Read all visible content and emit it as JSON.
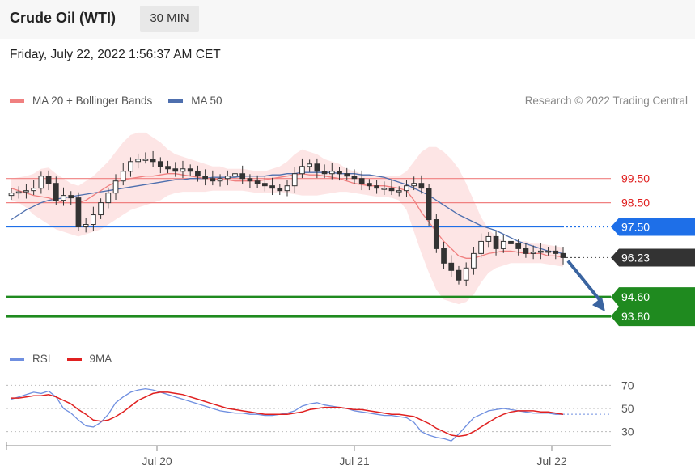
{
  "header": {
    "title": "Crude Oil (WTI)",
    "interval": "30 MIN",
    "timestamp": "Friday, July 22, 2022 1:56:37 AM CET",
    "copyright": "Research © 2022 Trading Central"
  },
  "legend": {
    "ma20_label": "MA 20 + Bollinger Bands",
    "ma50_label": "MA 50",
    "rsi_label": "RSI",
    "rsi_ma_label": "9MA"
  },
  "colors": {
    "ma20": "#f08080",
    "bands": "#fde0e0",
    "ma50": "#4e6fae",
    "candle": "#333333",
    "support": "#1f8a1f",
    "pivot": "#1e6fe8",
    "resistance": "#f08080",
    "current": "#333333",
    "arrow": "#3a64a0",
    "rsi": "#6f8fe0",
    "rsi_ma": "#e02020"
  },
  "chart_data": [
    {
      "type": "candlestick",
      "x_ticks": [
        "Jul 20",
        "Jul 21",
        "Jul 22"
      ],
      "levels": [
        {
          "label": "99.50",
          "value": 99.5,
          "role": "resistance"
        },
        {
          "label": "98.50",
          "value": 98.5,
          "role": "resistance"
        },
        {
          "label": "97.50",
          "value": 97.5,
          "role": "pivot"
        },
        {
          "label": "96.23",
          "value": 96.23,
          "role": "current"
        },
        {
          "label": "94.60",
          "value": 94.6,
          "role": "support"
        },
        {
          "label": "93.80",
          "value": 93.8,
          "role": "support"
        }
      ],
      "close": [
        98.9,
        98.95,
        99.0,
        99.1,
        99.6,
        99.3,
        98.6,
        98.8,
        98.7,
        97.5,
        97.6,
        98.0,
        98.5,
        98.9,
        99.4,
        99.8,
        100.2,
        100.3,
        100.3,
        100.2,
        100.0,
        99.9,
        99.8,
        99.9,
        99.8,
        99.6,
        99.5,
        99.4,
        99.5,
        99.6,
        99.7,
        99.5,
        99.4,
        99.3,
        99.2,
        99.1,
        99.0,
        99.2,
        99.7,
        100.0,
        100.1,
        99.8,
        99.7,
        99.8,
        99.7,
        99.6,
        99.5,
        99.3,
        99.2,
        99.1,
        99.1,
        99.0,
        99.0,
        99.2,
        99.3,
        99.1,
        97.8,
        96.6,
        96.0,
        95.7,
        95.3,
        95.8,
        96.4,
        96.9,
        97.1,
        96.6,
        96.9,
        96.8,
        96.6,
        96.4,
        96.45,
        96.5,
        96.5,
        96.4,
        96.23
      ],
      "ma20": [
        99.1,
        99.0,
        98.9,
        98.8,
        98.75,
        98.7,
        98.6,
        98.5,
        98.5,
        98.5,
        98.6,
        98.8,
        99.0,
        99.2,
        99.35,
        99.45,
        99.5,
        99.55,
        99.6,
        99.6,
        99.65,
        99.7,
        99.7,
        99.65,
        99.6,
        99.55,
        99.5,
        99.5,
        99.45,
        99.45,
        99.4,
        99.4,
        99.4,
        99.4,
        99.45,
        99.5,
        99.55,
        99.6,
        99.65,
        99.7,
        99.65,
        99.65,
        99.6,
        99.55,
        99.5,
        99.4,
        99.3,
        99.25,
        99.2,
        99.2,
        99.2,
        99.15,
        99.1,
        99.0,
        98.6,
        98.1,
        97.7,
        97.3,
        96.9,
        96.6,
        96.3,
        96.2,
        96.2,
        96.3,
        96.4,
        96.45,
        96.5,
        96.5,
        96.45,
        96.4,
        96.4,
        96.4,
        96.3,
        96.3,
        96.25
      ],
      "ma50": [
        97.8,
        98.0,
        98.2,
        98.35,
        98.5,
        98.6,
        98.65,
        98.7,
        98.75,
        98.8,
        98.85,
        98.9,
        98.95,
        99.0,
        99.05,
        99.1,
        99.15,
        99.2,
        99.25,
        99.3,
        99.35,
        99.4,
        99.45,
        99.45,
        99.5,
        99.5,
        99.5,
        99.55,
        99.55,
        99.55,
        99.55,
        99.6,
        99.6,
        99.6,
        99.6,
        99.65,
        99.65,
        99.7,
        99.7,
        99.75,
        99.75,
        99.75,
        99.75,
        99.75,
        99.7,
        99.7,
        99.7,
        99.65,
        99.65,
        99.6,
        99.55,
        99.45,
        99.35,
        99.25,
        99.1,
        98.95,
        98.8,
        98.6,
        98.4,
        98.2,
        98.0,
        97.85,
        97.7,
        97.55,
        97.45,
        97.35,
        97.2,
        97.05,
        96.9,
        96.8,
        96.7,
        96.6,
        96.5,
        96.45,
        96.4
      ],
      "bb_upper": [
        99.5,
        99.55,
        99.6,
        99.7,
        99.9,
        99.95,
        99.7,
        99.5,
        99.3,
        99.2,
        99.4,
        99.6,
        99.9,
        100.2,
        100.6,
        101.0,
        101.3,
        101.4,
        101.4,
        101.2,
        101.0,
        100.7,
        100.5,
        100.4,
        100.3,
        100.2,
        100.1,
        100.0,
        100.0,
        99.9,
        99.9,
        99.9,
        99.85,
        99.8,
        99.8,
        99.9,
        100.0,
        100.2,
        100.5,
        100.7,
        100.6,
        100.5,
        100.3,
        100.2,
        100.1,
        99.9,
        99.8,
        99.7,
        99.6,
        99.6,
        99.6,
        99.6,
        99.6,
        99.8,
        100.2,
        100.6,
        100.8,
        100.8,
        100.6,
        100.3,
        99.9,
        99.3,
        98.6,
        97.9,
        97.4,
        97.1,
        96.9,
        96.9,
        96.9,
        96.9,
        96.8,
        96.8,
        96.75,
        96.7,
        96.65
      ],
      "bb_lower": [
        98.6,
        98.5,
        98.3,
        98.0,
        97.8,
        97.6,
        97.4,
        97.3,
        97.2,
        97.1,
        97.2,
        97.3,
        97.4,
        97.6,
        97.8,
        98.0,
        98.2,
        98.3,
        98.4,
        98.5,
        98.6,
        98.8,
        98.9,
        98.95,
        98.95,
        98.95,
        98.95,
        99.0,
        99.0,
        99.0,
        99.0,
        99.0,
        98.95,
        98.9,
        98.9,
        98.9,
        98.95,
        98.9,
        98.85,
        98.8,
        98.8,
        98.8,
        98.85,
        98.9,
        98.95,
        98.95,
        98.9,
        98.85,
        98.8,
        98.75,
        98.75,
        98.7,
        98.6,
        98.2,
        97.3,
        96.4,
        95.6,
        94.9,
        94.5,
        94.4,
        94.3,
        94.4,
        94.7,
        95.2,
        95.6,
        95.8,
        95.9,
        96.0,
        96.0,
        96.0,
        96.0,
        96.0,
        95.95,
        95.9,
        95.85
      ]
    },
    {
      "type": "line",
      "x_ticks": [
        "Jul 20",
        "Jul 21",
        "Jul 22"
      ],
      "y_ticks": [
        "70",
        "50",
        "30"
      ],
      "ylim": [
        20,
        80
      ],
      "series": [
        {
          "name": "RSI",
          "values": [
            58,
            60,
            62,
            64,
            63,
            65,
            60,
            50,
            46,
            40,
            35,
            34,
            38,
            45,
            55,
            60,
            64,
            66,
            67,
            66,
            64,
            62,
            60,
            58,
            56,
            54,
            52,
            50,
            48,
            47,
            46,
            46,
            45,
            45,
            44,
            44,
            45,
            46,
            48,
            52,
            54,
            55,
            53,
            52,
            51,
            50,
            48,
            47,
            46,
            45,
            44,
            44,
            43,
            42,
            38,
            30,
            27,
            25,
            24,
            22,
            28,
            35,
            42,
            45,
            48,
            49,
            50,
            49,
            48,
            47,
            46,
            46,
            46,
            45,
            45
          ]
        },
        {
          "name": "9MA",
          "values": [
            59,
            59,
            60,
            61,
            61,
            62,
            60,
            57,
            54,
            49,
            45,
            40,
            39,
            40,
            43,
            47,
            52,
            57,
            60,
            63,
            64,
            64,
            63,
            62,
            60,
            58,
            56,
            54,
            52,
            50,
            49,
            48,
            47,
            46,
            45,
            45,
            45,
            45,
            46,
            47,
            49,
            50,
            51,
            51,
            51,
            50,
            49,
            49,
            48,
            47,
            46,
            45,
            45,
            44,
            43,
            40,
            37,
            33,
            30,
            27,
            26,
            27,
            30,
            34,
            38,
            42,
            45,
            47,
            48,
            48,
            48,
            47,
            47,
            46,
            45
          ]
        }
      ]
    }
  ]
}
